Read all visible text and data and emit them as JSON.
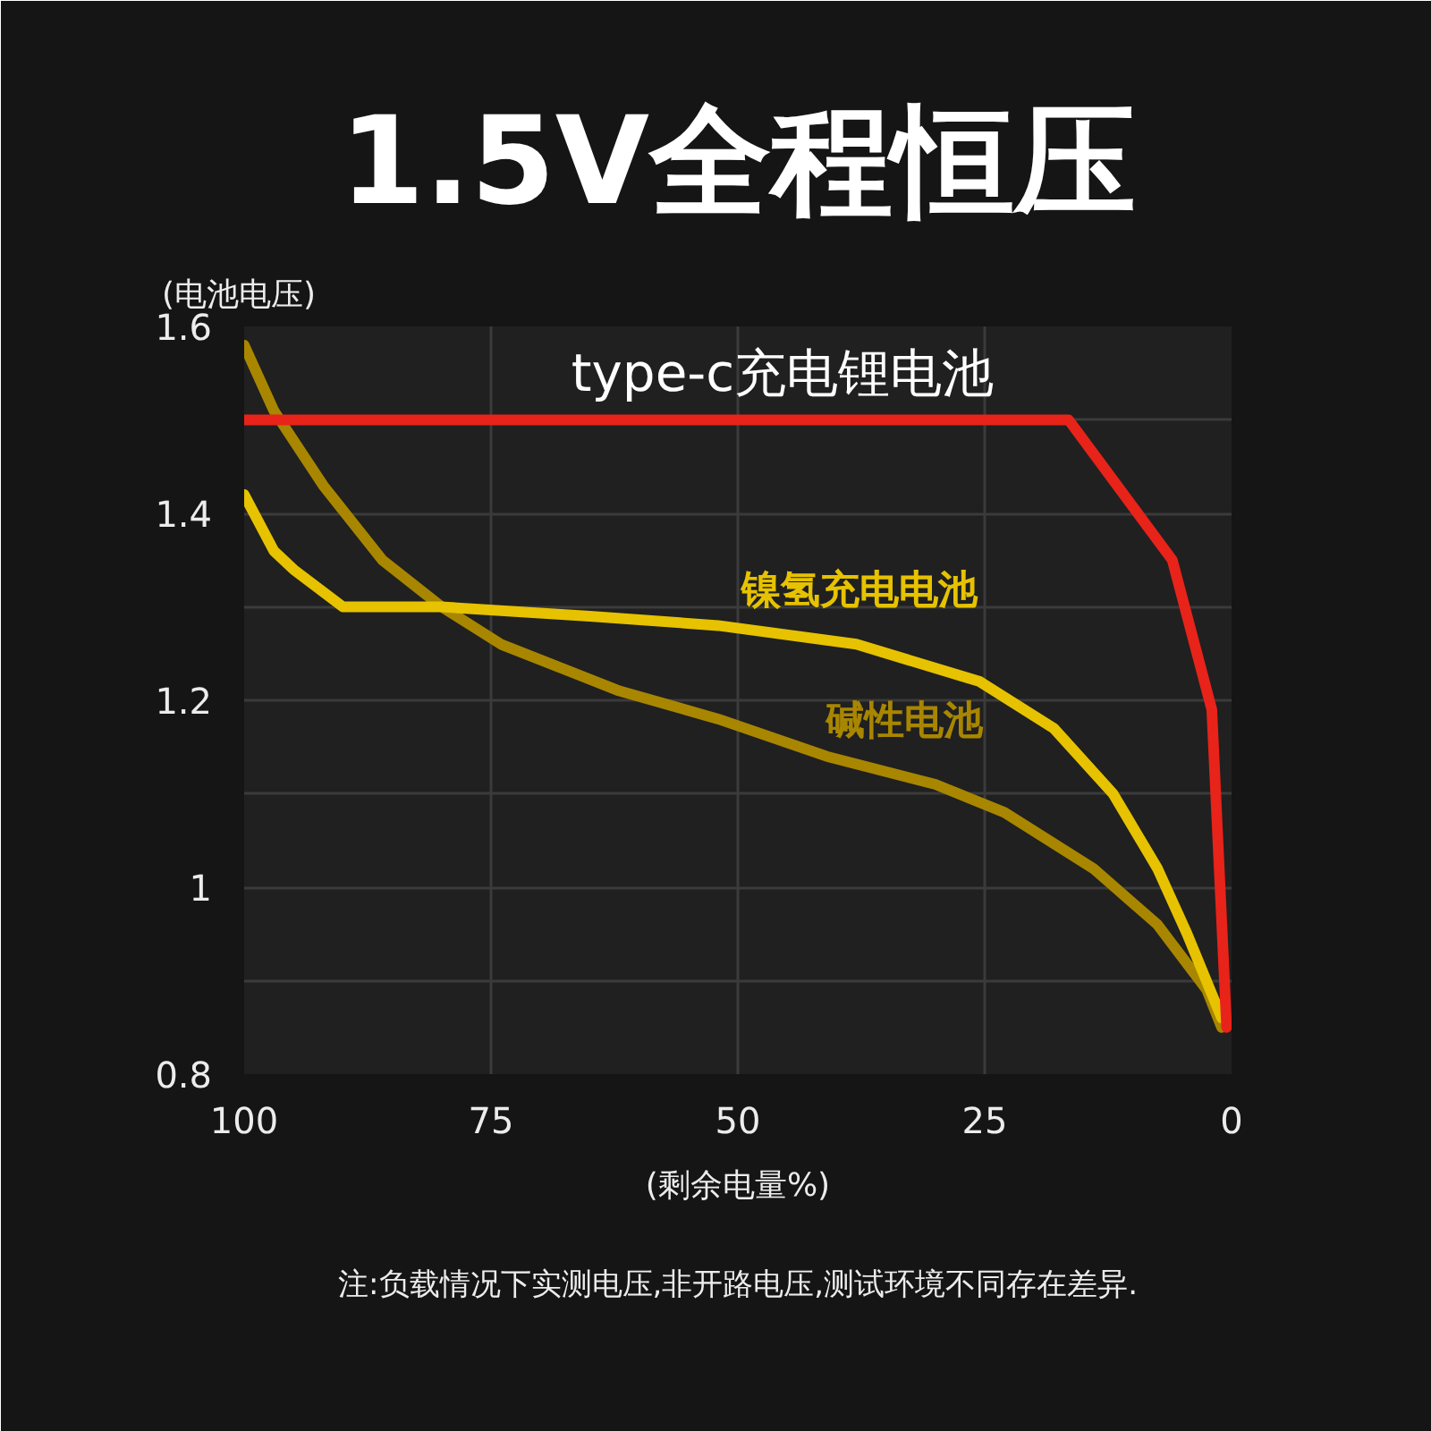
{
  "chart_data": {
    "type": "line",
    "title": "1.5V全程恒压",
    "xlabel": "(剩余电量%)",
    "ylabel": "(电池电压)",
    "annotations": [
      "注:负载情况下实测电压,非开路电压,测试环境不同存在差异."
    ],
    "xlim": [
      100,
      0
    ],
    "xticks": [
      100,
      75,
      50,
      25,
      0
    ],
    "ylim": [
      0.8,
      1.6
    ],
    "yticks": [
      0.8,
      {
        "value": 0.9,
        "label": null
      },
      1,
      {
        "value": 1.1,
        "label": null
      },
      1.2,
      {
        "value": 1.3,
        "label": null
      },
      1.4,
      {
        "value": 1.5,
        "label": null
      },
      1.6
    ],
    "grid": true,
    "series": [
      {
        "name": "碱性电池",
        "color": "#a88600",
        "x": [
          100,
          97,
          92,
          86,
          80,
          74,
          62,
          52,
          41,
          30,
          23,
          14,
          7.5,
          2.5,
          1
        ],
        "values": [
          1.58,
          1.51,
          1.43,
          1.35,
          1.3,
          1.26,
          1.21,
          1.18,
          1.14,
          1.11,
          1.08,
          1.02,
          0.96,
          0.89,
          0.85
        ]
      },
      {
        "name": "镍氢充电电池",
        "color": "#e6c200",
        "x": [
          100,
          97,
          95,
          90,
          80,
          65,
          52,
          38,
          25.5,
          18,
          12,
          7.5,
          4.5,
          1
        ],
        "values": [
          1.42,
          1.36,
          1.34,
          1.3,
          1.3,
          1.29,
          1.28,
          1.26,
          1.22,
          1.17,
          1.1,
          1.02,
          0.95,
          0.86
        ]
      },
      {
        "name": "type-c充电锂电池",
        "color": "#e8231a",
        "x": [
          100,
          16.5,
          6,
          2,
          0.5
        ],
        "values": [
          1.5,
          1.5,
          1.35,
          1.19,
          0.85
        ]
      }
    ]
  }
}
